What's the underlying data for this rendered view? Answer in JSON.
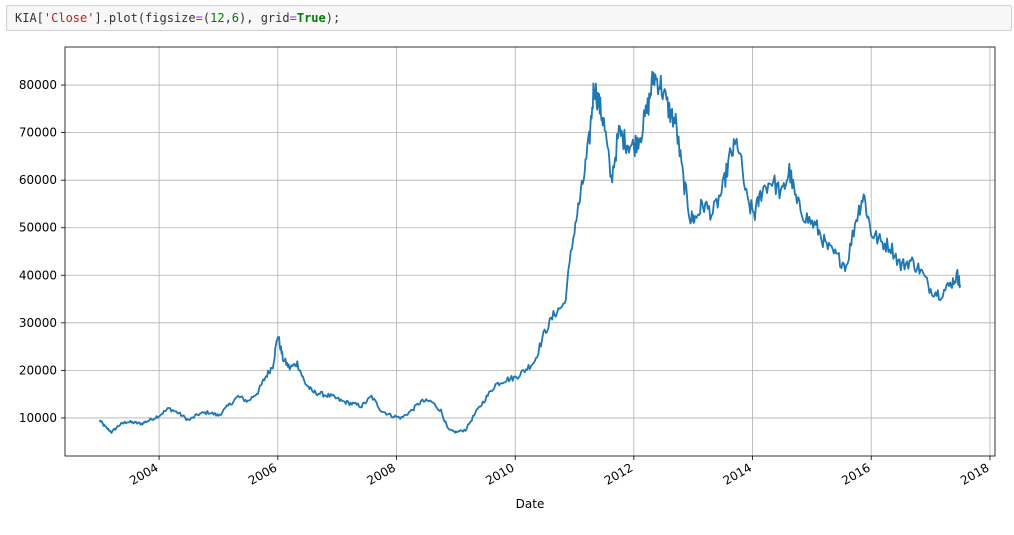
{
  "cell": {
    "prefix": "KIA[",
    "column": "'Close'",
    "method": "].plot(figsize",
    "eq1": "=",
    "args_open": "(",
    "num1": "12",
    "comma": ",",
    "num2": "6",
    "args_close": "), grid",
    "eq2": "=",
    "grid_value": "True",
    "suffix": ");"
  },
  "chart_data": {
    "type": "line",
    "title": "",
    "xlabel": "Date",
    "ylabel": "",
    "grid": true,
    "color": "#1f77b4",
    "xlim": [
      "2002-06-01",
      "2018-02-01"
    ],
    "ylim": [
      2000,
      88000
    ],
    "x_ticks": [
      "2004",
      "2006",
      "2008",
      "2010",
      "2012",
      "2014",
      "2016",
      "2018"
    ],
    "y_ticks": [
      "10000",
      "20000",
      "30000",
      "40000",
      "50000",
      "60000",
      "70000",
      "80000"
    ],
    "series": [
      {
        "x": [
          "2003-01-01",
          "2003-02-01",
          "2003-03-15",
          "2003-05-01",
          "2003-06-15",
          "2003-08-01",
          "2003-09-15",
          "2003-11-01",
          "2004-01-01",
          "2004-03-01",
          "2004-05-01",
          "2004-07-01",
          "2004-09-01",
          "2004-11-01",
          "2005-01-01",
          "2005-03-01",
          "2005-05-01",
          "2005-07-01",
          "2005-09-01",
          "2005-10-15",
          "2005-12-01",
          "2006-01-01",
          "2006-02-01",
          "2006-03-15",
          "2006-05-01",
          "2006-06-15",
          "2006-08-01",
          "2006-10-01",
          "2006-12-01",
          "2007-02-01",
          "2007-04-01",
          "2007-06-01",
          "2007-08-01",
          "2007-10-01",
          "2007-12-01",
          "2008-02-01",
          "2008-04-01",
          "2008-06-01",
          "2008-08-01",
          "2008-10-01",
          "2008-11-15",
          "2009-01-01",
          "2009-03-01",
          "2009-05-01",
          "2009-07-01",
          "2009-09-01",
          "2009-11-01",
          "2010-01-01",
          "2010-03-01",
          "2010-05-01",
          "2010-07-01",
          "2010-09-01",
          "2010-11-01",
          "2011-01-01",
          "2011-02-15",
          "2011-04-01",
          "2011-05-01",
          "2011-06-01",
          "2011-07-01",
          "2011-08-15",
          "2011-10-01",
          "2011-11-15",
          "2012-01-01",
          "2012-02-15",
          "2012-04-01",
          "2012-05-01",
          "2012-06-15",
          "2012-08-01",
          "2012-09-15",
          "2012-11-01",
          "2012-12-15",
          "2013-01-15",
          "2013-03-01",
          "2013-05-01",
          "2013-07-01",
          "2013-08-15",
          "2013-10-01",
          "2013-12-01",
          "2014-01-15",
          "2014-03-01",
          "2014-05-01",
          "2014-07-01",
          "2014-08-15",
          "2014-10-01",
          "2014-12-01",
          "2015-02-01",
          "2015-04-01",
          "2015-06-01",
          "2015-08-01",
          "2015-10-01",
          "2015-11-15",
          "2016-01-01",
          "2016-03-01",
          "2016-05-01",
          "2016-07-01",
          "2016-09-01",
          "2016-11-01",
          "2017-01-01",
          "2017-03-01",
          "2017-05-01",
          "2017-06-15",
          "2017-07-01"
        ],
        "values": [
          9500,
          8200,
          7000,
          8500,
          9200,
          9000,
          8800,
          9500,
          10500,
          12000,
          11000,
          9500,
          10800,
          11200,
          10500,
          12500,
          14500,
          13500,
          15500,
          18500,
          21000,
          27500,
          22500,
          20500,
          21500,
          17500,
          15500,
          15000,
          14500,
          13500,
          13000,
          12500,
          14500,
          11500,
          10500,
          10000,
          11500,
          13500,
          13500,
          11500,
          7500,
          7000,
          7500,
          11000,
          14000,
          17000,
          18000,
          18500,
          20000,
          22000,
          28000,
          32000,
          34000,
          50000,
          58000,
          68000,
          80000,
          76000,
          72000,
          60000,
          70000,
          68000,
          67000,
          70000,
          76000,
          82000,
          80000,
          75000,
          72000,
          60000,
          52000,
          52000,
          55000,
          53000,
          58000,
          65000,
          68000,
          55000,
          53000,
          58000,
          60000,
          57000,
          62000,
          55000,
          52000,
          50000,
          46000,
          44000,
          42000,
          52000,
          57000,
          49000,
          47000,
          46000,
          42000,
          43000,
          41000,
          37000,
          36000,
          38000,
          40000,
          38000
        ]
      }
    ]
  }
}
